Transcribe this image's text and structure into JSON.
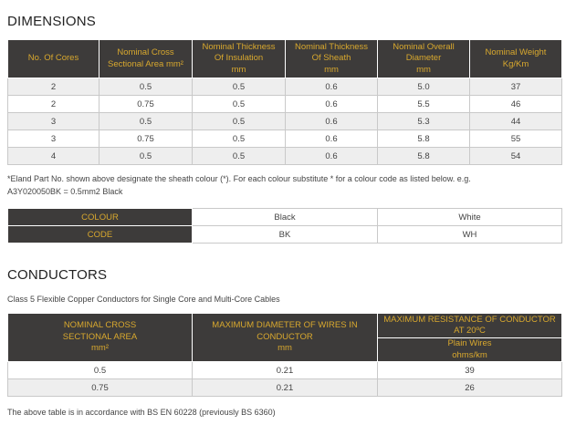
{
  "dimensions": {
    "heading": "DIMENSIONS",
    "headers": {
      "cores": "No. Of Cores",
      "csa_1": "Nominal Cross",
      "csa_2": "Sectional Area mm²",
      "ins_1": "Nominal Thickness",
      "ins_2": "Of Insulation",
      "ins_3": "mm",
      "sheath_1": "Nominal Thickness",
      "sheath_2": "Of Sheath",
      "sheath_3": "mm",
      "dia_1": "Nominal Overall",
      "dia_2": "Diameter",
      "dia_3": "mm",
      "wt_1": "Nominal Weight",
      "wt_2": "Kg/Km"
    },
    "rows": [
      [
        "2",
        "0.5",
        "0.5",
        "0.6",
        "5.0",
        "37"
      ],
      [
        "2",
        "0.75",
        "0.5",
        "0.6",
        "5.5",
        "46"
      ],
      [
        "3",
        "0.5",
        "0.5",
        "0.6",
        "5.3",
        "44"
      ],
      [
        "3",
        "0.75",
        "0.5",
        "0.6",
        "5.8",
        "55"
      ],
      [
        "4",
        "0.5",
        "0.5",
        "0.6",
        "5.8",
        "54"
      ]
    ]
  },
  "note": {
    "line1": "*Eland Part No. shown above designate the sheath colour (*). For each colour substitute * for a colour code as listed below. e.g.",
    "line2": "A3Y020050BK = 0.5mm2 Black"
  },
  "colour_table": {
    "colour_label": "COLOUR",
    "code_label": "CODE",
    "colours": [
      "Black",
      "White"
    ],
    "codes": [
      "BK",
      "WH"
    ]
  },
  "conductors": {
    "heading": "CONDUCTORS",
    "subtitle": "Class 5 Flexible Copper Conductors for Single Core and Multi-Core Cables",
    "headers": {
      "csa_1": "NOMINAL CROSS",
      "csa_2": "SECTIONAL AREA",
      "csa_3": "mm²",
      "dia_1": "MAXIMUM DIAMETER OF WIRES IN",
      "dia_2": "CONDUCTOR",
      "dia_3": "mm",
      "res_1": "MAXIMUM RESISTANCE OF CONDUCTOR",
      "res_2": "AT 20ºC",
      "res_sub_1": "Plain Wires",
      "res_sub_2": "ohms/km"
    },
    "rows": [
      [
        "0.5",
        "0.21",
        "39"
      ],
      [
        "0.75",
        "0.21",
        "26"
      ]
    ],
    "footer": "The above table is in accordance with BS EN 60228 (previously BS 6360)"
  }
}
